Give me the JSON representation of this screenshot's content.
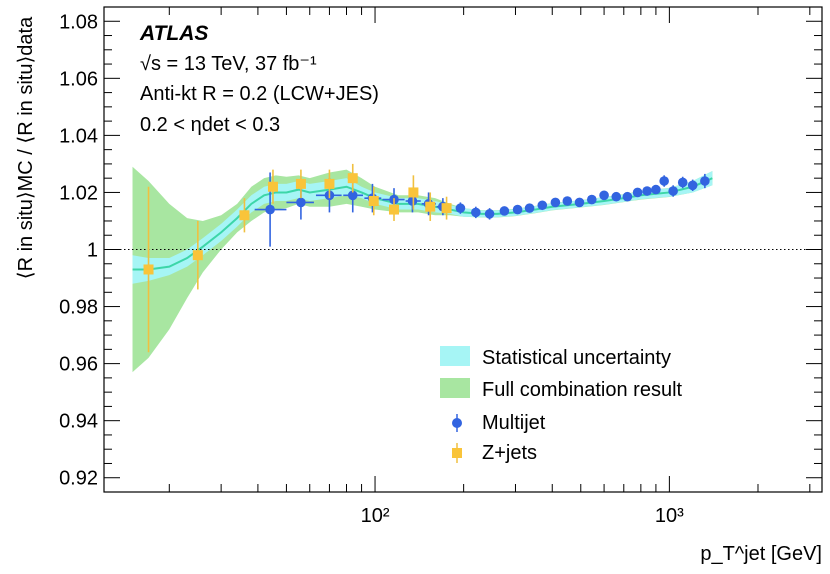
{
  "chart_data": {
    "type": "scatter",
    "experiment": "ATLAS",
    "annotations": {
      "energy": "√s = 13 TeV, 37 fb⁻¹",
      "algorithm": "Anti-kt R = 0.2 (LCW+JES)",
      "eta_range": "0.2 < ηdet < 0.3"
    },
    "xlabel": "p_T^jet [GeV]",
    "ylabel": "⟨R in situ⟩MC / ⟨R in situ⟩data",
    "xscale": "log",
    "xlim": [
      12,
      3300
    ],
    "ylim": [
      0.915,
      1.085
    ],
    "x_ticks": [
      100,
      1000
    ],
    "x_tick_labels": [
      "10²",
      "10³"
    ],
    "y_ticks": [
      0.92,
      0.94,
      0.96,
      0.98,
      1.0,
      1.02,
      1.04,
      1.06,
      1.08
    ],
    "y_tick_labels": [
      "0.92",
      "0.94",
      "0.96",
      "0.98",
      "1",
      "1.02",
      "1.04",
      "1.06",
      "1.08"
    ],
    "reference_line": 1.0,
    "legend": {
      "placement": "bottom-right",
      "entries": [
        "Statistical uncertainty",
        "Full combination result",
        "Multijet",
        "Z+jets"
      ]
    },
    "colors": {
      "statistical": "#a6f5f5",
      "full": "#a8e6a1",
      "central": "#3dd6a8",
      "multijet": "#3264e0",
      "zjets": "#f9c43a",
      "zjets_err": "#f0c040"
    },
    "combination": {
      "x": [
        15,
        17,
        20,
        23,
        26,
        30,
        34,
        38,
        42,
        46,
        50,
        55,
        60,
        70,
        80,
        90,
        100,
        120,
        140,
        160,
        180,
        200,
        230,
        260,
        300,
        350,
        400,
        500,
        600,
        700,
        800,
        1000,
        1200,
        1400
      ],
      "central": [
        0.993,
        0.993,
        0.994,
        0.997,
        1.001,
        1.006,
        1.011,
        1.016,
        1.019,
        1.02,
        1.02,
        1.021,
        1.02,
        1.021,
        1.022,
        1.02,
        1.018,
        1.016,
        1.016,
        1.015,
        1.014,
        1.013,
        1.0125,
        1.0125,
        1.013,
        1.014,
        1.015,
        1.016,
        1.017,
        1.018,
        1.019,
        1.02,
        1.022,
        1.025
      ],
      "stat_err": [
        0.005,
        0.004,
        0.003,
        0.003,
        0.003,
        0.003,
        0.003,
        0.003,
        0.003,
        0.003,
        0.003,
        0.003,
        0.003,
        0.003,
        0.003,
        0.002,
        0.002,
        0.002,
        0.002,
        0.002,
        0.0015,
        0.0015,
        0.0012,
        0.0012,
        0.0012,
        0.0012,
        0.0012,
        0.0012,
        0.0013,
        0.0013,
        0.0014,
        0.0015,
        0.002,
        0.0025
      ],
      "full_err": [
        0.036,
        0.031,
        0.022,
        0.014,
        0.009,
        0.006,
        0.005,
        0.006,
        0.006,
        0.006,
        0.0055,
        0.005,
        0.005,
        0.006,
        0.006,
        0.005,
        0.004,
        0.003,
        0.003,
        0.003,
        0.002,
        0.0015,
        0.0013,
        0.0013,
        0.0013,
        0.0013,
        0.0013,
        0.0013,
        0.0014,
        0.0014,
        0.0015,
        0.0016,
        0.002,
        0.0025
      ]
    },
    "series": [
      {
        "name": "Multijet",
        "marker": "circle",
        "points": [
          {
            "x": 44,
            "y": 1.014,
            "yerr": 0.013,
            "xlo": 39,
            "xhi": 50
          },
          {
            "x": 56,
            "y": 1.0165,
            "yerr": 0.006,
            "xlo": 50,
            "xhi": 62
          },
          {
            "x": 70,
            "y": 1.019,
            "yerr": 0.006,
            "xlo": 63,
            "xhi": 77
          },
          {
            "x": 84,
            "y": 1.019,
            "yerr": 0.006,
            "xlo": 78,
            "xhi": 91
          },
          {
            "x": 98,
            "y": 1.018,
            "yerr": 0.005,
            "xlo": 92,
            "xhi": 105
          },
          {
            "x": 116,
            "y": 1.0175,
            "yerr": 0.004,
            "xlo": 106,
            "xhi": 126
          },
          {
            "x": 134,
            "y": 1.017,
            "yerr": 0.004,
            "xlo": 127,
            "xhi": 143
          },
          {
            "x": 152,
            "y": 1.016,
            "yerr": 0.004,
            "xlo": 144,
            "xhi": 161
          },
          {
            "x": 170,
            "y": 1.015,
            "yerr": 0.003,
            "xlo": 162,
            "xhi": 180
          },
          {
            "x": 195,
            "y": 1.0145,
            "yerr": 0.002
          },
          {
            "x": 220,
            "y": 1.013,
            "yerr": 0.002
          },
          {
            "x": 245,
            "y": 1.0125,
            "yerr": 0.002
          },
          {
            "x": 275,
            "y": 1.0135,
            "yerr": 0.0015
          },
          {
            "x": 305,
            "y": 1.014,
            "yerr": 0.0015
          },
          {
            "x": 335,
            "y": 1.0145,
            "yerr": 0.0015
          },
          {
            "x": 370,
            "y": 1.0155,
            "yerr": 0.0015
          },
          {
            "x": 410,
            "y": 1.0165,
            "yerr": 0.0015
          },
          {
            "x": 450,
            "y": 1.017,
            "yerr": 0.0015
          },
          {
            "x": 495,
            "y": 1.0165,
            "yerr": 0.0015
          },
          {
            "x": 545,
            "y": 1.0175,
            "yerr": 0.0015
          },
          {
            "x": 600,
            "y": 1.019,
            "yerr": 0.0015
          },
          {
            "x": 660,
            "y": 1.0185,
            "yerr": 0.0015
          },
          {
            "x": 720,
            "y": 1.0185,
            "yerr": 0.0015
          },
          {
            "x": 780,
            "y": 1.02,
            "yerr": 0.0015
          },
          {
            "x": 840,
            "y": 1.0205,
            "yerr": 0.0015
          },
          {
            "x": 900,
            "y": 1.021,
            "yerr": 0.0015
          },
          {
            "x": 960,
            "y": 1.024,
            "yerr": 0.002
          },
          {
            "x": 1030,
            "y": 1.0205,
            "yerr": 0.002
          },
          {
            "x": 1110,
            "y": 1.0235,
            "yerr": 0.002
          },
          {
            "x": 1200,
            "y": 1.0225,
            "yerr": 0.002
          },
          {
            "x": 1320,
            "y": 1.024,
            "yerr": 0.0025
          }
        ]
      },
      {
        "name": "Z+jets",
        "marker": "square",
        "points": [
          {
            "x": 17,
            "y": 0.993,
            "yerr": 0.029
          },
          {
            "x": 25,
            "y": 0.998,
            "yerr": 0.012
          },
          {
            "x": 36,
            "y": 1.012,
            "yerr": 0.006
          },
          {
            "x": 45,
            "y": 1.022,
            "yerr": 0.006
          },
          {
            "x": 56,
            "y": 1.023,
            "yerr": 0.005
          },
          {
            "x": 70,
            "y": 1.023,
            "yerr": 0.005
          },
          {
            "x": 84,
            "y": 1.025,
            "yerr": 0.005
          },
          {
            "x": 99,
            "y": 1.017,
            "yerr": 0.005
          },
          {
            "x": 116,
            "y": 1.014,
            "yerr": 0.004
          },
          {
            "x": 135,
            "y": 1.02,
            "yerr": 0.006
          },
          {
            "x": 154,
            "y": 1.015,
            "yerr": 0.005
          },
          {
            "x": 175,
            "y": 1.0145,
            "yerr": 0.004
          }
        ]
      }
    ]
  }
}
